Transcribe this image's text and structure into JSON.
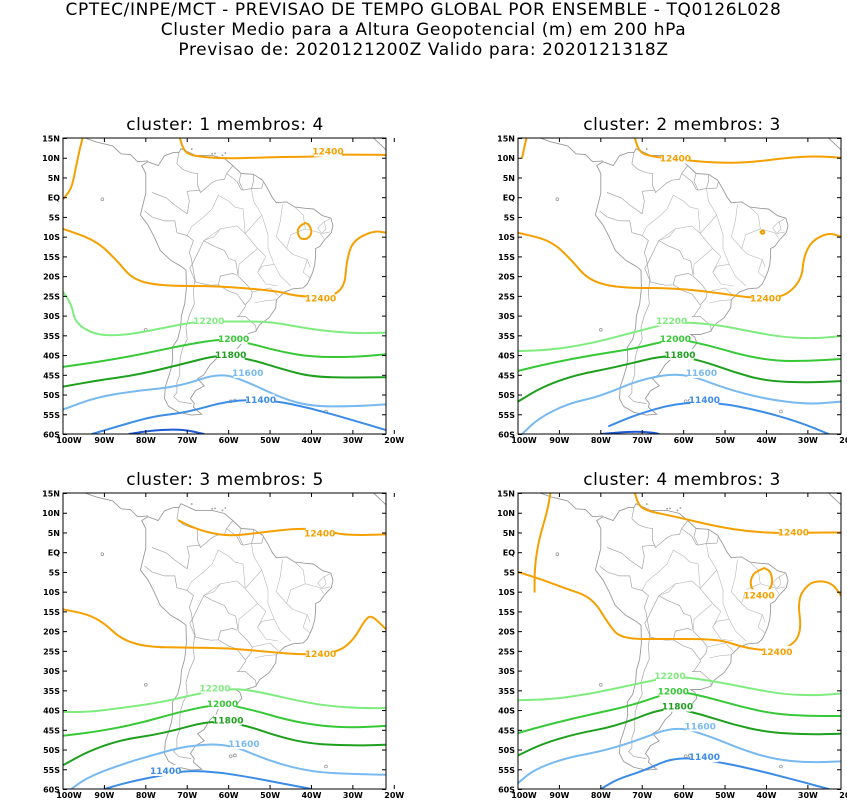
{
  "header": {
    "line1": "CPTEC/INPE/MCT - PREVISAO DE TEMPO GLOBAL POR ENSEMBLE - TQ0126L028",
    "line2": "Cluster Medio para a Altura Geopotencial (m) em 200 hPa",
    "line3": "Previsao de: 2020121200Z   Valido para: 2020121318Z"
  },
  "axes": {
    "lat_labels": [
      "15N",
      "10N",
      "5N",
      "EQ",
      "5S",
      "10S",
      "15S",
      "20S",
      "25S",
      "30S",
      "35S",
      "40S",
      "45S",
      "50S",
      "55S",
      "60S"
    ],
    "lon_labels": [
      "100W",
      "90W",
      "80W",
      "70W",
      "60W",
      "50W",
      "40W",
      "30W",
      "20W"
    ]
  },
  "contour_colors": {
    "12400": "#f5a000",
    "12200": "#80ec80",
    "12000": "#37c837",
    "11800": "#1ea01e",
    "11600": "#78b9f0",
    "11400": "#3c8ce6",
    "11200": "#1e5ad2"
  },
  "panels": [
    {
      "title": "cluster: 1   membros: 4",
      "labels": [
        "12400",
        "12400",
        "12200",
        "12000",
        "11800",
        "11600",
        "11400"
      ]
    },
    {
      "title": "cluster: 2   membros: 3",
      "labels": [
        "12400",
        "12400",
        "12200",
        "12000",
        "11800",
        "11600",
        "11400"
      ]
    },
    {
      "title": "cluster: 3   membros: 5",
      "labels": [
        "12400",
        "12400",
        "12200",
        "12000",
        "11800",
        "11600",
        "11400"
      ]
    },
    {
      "title": "cluster: 4   membros: 3",
      "labels": [
        "12400",
        "12400",
        "12400",
        "12200",
        "12000",
        "11800",
        "11600",
        "11400"
      ]
    }
  ]
}
